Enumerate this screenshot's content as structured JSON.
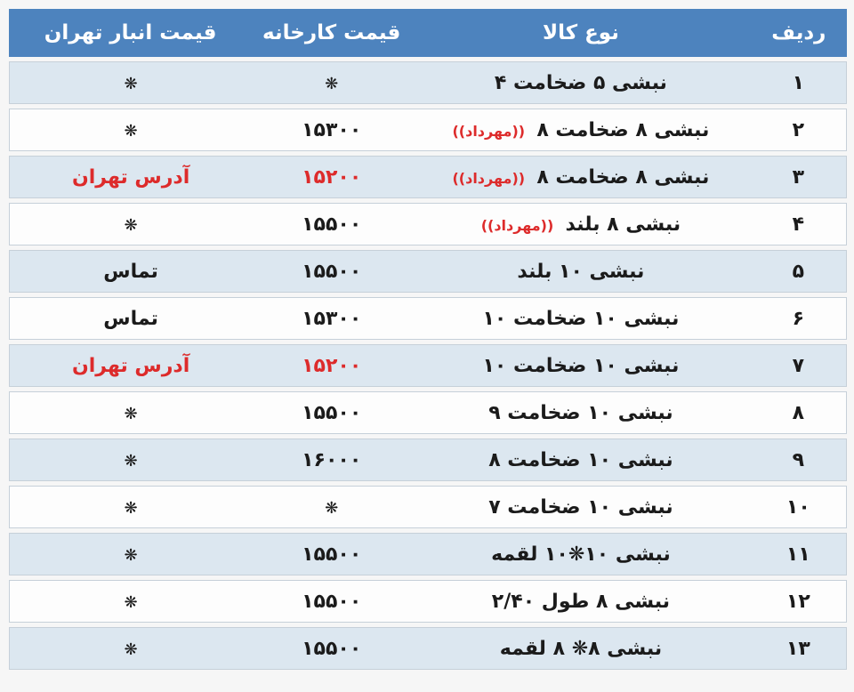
{
  "colors": {
    "header_bg": "#4d83be",
    "row_alt_bg": "#dce7f0",
    "row_white_bg": "#fdfdfd",
    "red_accent": "#dd2b2b"
  },
  "symbols": {
    "missing_value_asterisk": "❋"
  },
  "header": {
    "columns": [
      {
        "key": "radif",
        "label": "ردیف"
      },
      {
        "key": "product",
        "label": "نوع کالا"
      },
      {
        "key": "factory",
        "label": "قیمت کارخانه"
      },
      {
        "key": "warehouse",
        "label": "قیمت انبار تهران"
      }
    ]
  },
  "rows": [
    {
      "radif": "۱",
      "product": "نبشی ۵ ضخامت ۴",
      "note": "",
      "factory": "❋",
      "factory_red": false,
      "warehouse": "❋",
      "warehouse_red": false
    },
    {
      "radif": "۲",
      "product": "نبشی ۸ ضخامت ۸",
      "note": "((مهرداد))",
      "factory": "۱۵۳۰۰",
      "factory_red": false,
      "warehouse": "❋",
      "warehouse_red": false
    },
    {
      "radif": "۳",
      "product": "نبشی ۸ ضخامت ۸",
      "note": "((مهرداد))",
      "factory": "۱۵۲۰۰",
      "factory_red": true,
      "warehouse": "آدرس تهران",
      "warehouse_red": true
    },
    {
      "radif": "۴",
      "product": "نبشی ۸ بلند",
      "note": "((مهرداد))",
      "factory": "۱۵۵۰۰",
      "factory_red": false,
      "warehouse": "❋",
      "warehouse_red": false
    },
    {
      "radif": "۵",
      "product": "نبشی ۱۰ بلند",
      "note": "",
      "factory": "۱۵۵۰۰",
      "factory_red": false,
      "warehouse": "تماس",
      "warehouse_red": false
    },
    {
      "radif": "۶",
      "product": "نبشی ۱۰ ضخامت ۱۰",
      "note": "",
      "factory": "۱۵۳۰۰",
      "factory_red": false,
      "warehouse": "تماس",
      "warehouse_red": false
    },
    {
      "radif": "۷",
      "product": "نبشی ۱۰ ضخامت ۱۰",
      "note": "",
      "factory": "۱۵۲۰۰",
      "factory_red": true,
      "warehouse": "آدرس تهران",
      "warehouse_red": true
    },
    {
      "radif": "۸",
      "product": "نبشی ۱۰ ضخامت ۹",
      "note": "",
      "factory": "۱۵۵۰۰",
      "factory_red": false,
      "warehouse": "❋",
      "warehouse_red": false
    },
    {
      "radif": "۹",
      "product": "نبشی ۱۰ ضخامت ۸",
      "note": "",
      "factory": "۱۶۰۰۰",
      "factory_red": false,
      "warehouse": "❋",
      "warehouse_red": false
    },
    {
      "radif": "۱۰",
      "product": "نبشی ۱۰ ضخامت ۷",
      "note": "",
      "factory": "❋",
      "factory_red": false,
      "warehouse": "❋",
      "warehouse_red": false
    },
    {
      "radif": "۱۱",
      "product": "نبشی ۱۰❋۱۰ لقمه",
      "note": "",
      "factory": "۱۵۵۰۰",
      "factory_red": false,
      "warehouse": "❋",
      "warehouse_red": false
    },
    {
      "radif": "۱۲",
      "product": "نبشی ۸ طول ۲/۴۰",
      "note": "",
      "factory": "۱۵۵۰۰",
      "factory_red": false,
      "warehouse": "❋",
      "warehouse_red": false
    },
    {
      "radif": "۱۳",
      "product": "نبشی ۸❋ ۸ لقمه",
      "note": "",
      "factory": "۱۵۵۰۰",
      "factory_red": false,
      "warehouse": "❋",
      "warehouse_red": false
    }
  ]
}
